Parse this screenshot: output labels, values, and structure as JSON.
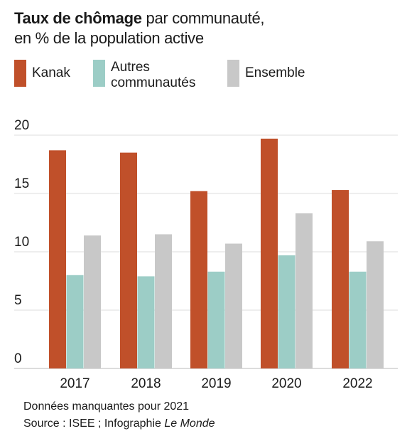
{
  "header": {
    "title_bold": "Taux de chômage",
    "title_rest": " par communauté,",
    "title_line2": "en % de la population active"
  },
  "legend": [
    {
      "label": "Kanak",
      "color": "#c0502a"
    },
    {
      "label": "Autres communautés",
      "color": "#9ccdc6"
    },
    {
      "label": "Ensemble",
      "color": "#c8c8c8"
    }
  ],
  "chart_data": {
    "type": "bar",
    "categories": [
      "2017",
      "2018",
      "2019",
      "2020",
      "2022"
    ],
    "series": [
      {
        "name": "Kanak",
        "values": [
          18.7,
          18.5,
          15.2,
          19.7,
          15.3
        ],
        "color": "#c0502a"
      },
      {
        "name": "Autres communautés",
        "values": [
          8.0,
          7.9,
          8.3,
          9.7,
          8.3
        ],
        "color": "#9ccdc6"
      },
      {
        "name": "Ensemble",
        "values": [
          11.4,
          11.5,
          10.7,
          13.3,
          10.9
        ],
        "color": "#c8c8c8"
      }
    ],
    "yticks": [
      0,
      5,
      10,
      15,
      20
    ],
    "ylim": [
      0,
      20
    ],
    "grid": true,
    "legend_position": "top-left"
  },
  "footer": {
    "note": "Données manquantes pour 2021",
    "source_prefix": "Source : ISEE ; Infographie ",
    "source_italic": "Le Monde"
  }
}
